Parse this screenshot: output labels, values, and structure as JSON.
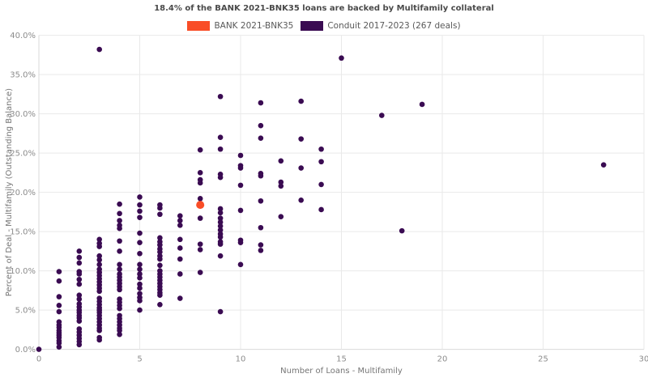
{
  "title": "18.4% of the BANK 2021-BNK35 loans are backed by Multifamily collateral",
  "legend": {
    "items": [
      {
        "label": "BANK 2021-BNK35",
        "color": "#F94D27"
      },
      {
        "label": "Conduit 2017-2023 (267 deals)",
        "color": "#3A0B52"
      }
    ]
  },
  "colors": {
    "bank": "#F94D27",
    "conduit": "#3A0B52",
    "grid": "#e9e9e9",
    "spine": "#d9d9d9",
    "tick_text": "#8c8c8c",
    "axis_title_text": "#757575"
  },
  "chart_data": {
    "type": "scatter",
    "title": "18.4% of the BANK 2021-BNK35 loans are backed by Multifamily collateral",
    "xlabel": "Number of Loans - Multifamily",
    "ylabel": "Percent of Deal - Multifamily (Outstanding Balance)",
    "xlim": [
      0,
      30
    ],
    "ylim": [
      0,
      40
    ],
    "grid": true,
    "legend_position": "top-center",
    "x_ticks": {
      "values": [
        0,
        5,
        10,
        15,
        20,
        25,
        30
      ],
      "labels": [
        "0",
        "5",
        "10",
        "15",
        "20",
        "25",
        "30"
      ]
    },
    "y_ticks": {
      "values": [
        0,
        5,
        10,
        15,
        20,
        25,
        30,
        35,
        40
      ],
      "labels": [
        "0.0%",
        "5.0%",
        "10.0%",
        "15.0%",
        "20.0%",
        "25.0%",
        "30.0%",
        "35.0%",
        "40.0%"
      ]
    },
    "series": [
      {
        "name": "Conduit 2017-2023 (267 deals)",
        "color": "#3A0B52",
        "marker_radius": 3.3,
        "points": [
          [
            0,
            0.0
          ],
          [
            1,
            9.9
          ],
          [
            1,
            8.7
          ],
          [
            1,
            6.7
          ],
          [
            1,
            5.6
          ],
          [
            1,
            4.8
          ],
          [
            1,
            3.5
          ],
          [
            1,
            3.1
          ],
          [
            1,
            2.8
          ],
          [
            1,
            2.4
          ],
          [
            1,
            2.1
          ],
          [
            1,
            1.8
          ],
          [
            1,
            1.5
          ],
          [
            1,
            1.1
          ],
          [
            1,
            0.8
          ],
          [
            1,
            0.3
          ],
          [
            2,
            12.5
          ],
          [
            2,
            11.7
          ],
          [
            2,
            11.0
          ],
          [
            2,
            9.9
          ],
          [
            2,
            9.6
          ],
          [
            2,
            8.9
          ],
          [
            2,
            8.3
          ],
          [
            2,
            6.9
          ],
          [
            2,
            6.4
          ],
          [
            2,
            5.8
          ],
          [
            2,
            5.4
          ],
          [
            2,
            5.0
          ],
          [
            2,
            4.7
          ],
          [
            2,
            4.3
          ],
          [
            2,
            4.0
          ],
          [
            2,
            3.6
          ],
          [
            2,
            2.6
          ],
          [
            2,
            2.2
          ],
          [
            2,
            1.8
          ],
          [
            2,
            1.4
          ],
          [
            2,
            1.0
          ],
          [
            2,
            0.6
          ],
          [
            3,
            38.2
          ],
          [
            3,
            14.0
          ],
          [
            3,
            13.5
          ],
          [
            3,
            13.1
          ],
          [
            3,
            11.9
          ],
          [
            3,
            11.4
          ],
          [
            3,
            10.8
          ],
          [
            3,
            10.2
          ],
          [
            3,
            9.8
          ],
          [
            3,
            9.4
          ],
          [
            3,
            9.0
          ],
          [
            3,
            8.6
          ],
          [
            3,
            8.2
          ],
          [
            3,
            7.8
          ],
          [
            3,
            7.4
          ],
          [
            3,
            6.5
          ],
          [
            3,
            6.1
          ],
          [
            3,
            5.7
          ],
          [
            3,
            5.3
          ],
          [
            3,
            5.0
          ],
          [
            3,
            4.7
          ],
          [
            3,
            4.3
          ],
          [
            3,
            3.9
          ],
          [
            3,
            3.5
          ],
          [
            3,
            3.1
          ],
          [
            3,
            2.7
          ],
          [
            3,
            2.4
          ],
          [
            3,
            1.5
          ],
          [
            3,
            1.2
          ],
          [
            4,
            18.5
          ],
          [
            4,
            17.3
          ],
          [
            4,
            16.4
          ],
          [
            4,
            15.8
          ],
          [
            4,
            15.4
          ],
          [
            4,
            13.8
          ],
          [
            4,
            12.5
          ],
          [
            4,
            10.8
          ],
          [
            4,
            10.2
          ],
          [
            4,
            9.6
          ],
          [
            4,
            9.2
          ],
          [
            4,
            8.8
          ],
          [
            4,
            8.4
          ],
          [
            4,
            8.0
          ],
          [
            4,
            7.6
          ],
          [
            4,
            6.4
          ],
          [
            4,
            6.0
          ],
          [
            4,
            5.6
          ],
          [
            4,
            5.2
          ],
          [
            4,
            4.3
          ],
          [
            4,
            3.9
          ],
          [
            4,
            3.5
          ],
          [
            4,
            3.1
          ],
          [
            4,
            2.7
          ],
          [
            4,
            2.4
          ],
          [
            4,
            1.9
          ],
          [
            5,
            19.4
          ],
          [
            5,
            18.4
          ],
          [
            5,
            17.6
          ],
          [
            5,
            16.8
          ],
          [
            5,
            14.8
          ],
          [
            5,
            13.6
          ],
          [
            5,
            12.2
          ],
          [
            5,
            10.8
          ],
          [
            5,
            10.2
          ],
          [
            5,
            9.6
          ],
          [
            5,
            9.1
          ],
          [
            5,
            8.3
          ],
          [
            5,
            7.8
          ],
          [
            5,
            7.1
          ],
          [
            5,
            6.6
          ],
          [
            5,
            6.2
          ],
          [
            5,
            5.0
          ],
          [
            6,
            18.4
          ],
          [
            6,
            18.0
          ],
          [
            6,
            17.2
          ],
          [
            6,
            14.2
          ],
          [
            6,
            13.7
          ],
          [
            6,
            13.3
          ],
          [
            6,
            12.8
          ],
          [
            6,
            12.4
          ],
          [
            6,
            11.9
          ],
          [
            6,
            11.5
          ],
          [
            6,
            10.7
          ],
          [
            6,
            10.0
          ],
          [
            6,
            9.6
          ],
          [
            6,
            9.2
          ],
          [
            6,
            8.8
          ],
          [
            6,
            8.4
          ],
          [
            6,
            8.0
          ],
          [
            6,
            7.6
          ],
          [
            6,
            7.2
          ],
          [
            6,
            6.9
          ],
          [
            6,
            5.7
          ],
          [
            7,
            17.0
          ],
          [
            7,
            16.4
          ],
          [
            7,
            15.8
          ],
          [
            7,
            14.0
          ],
          [
            7,
            12.9
          ],
          [
            7,
            11.5
          ],
          [
            7,
            9.6
          ],
          [
            7,
            6.5
          ],
          [
            8,
            25.4
          ],
          [
            8,
            22.5
          ],
          [
            8,
            21.6
          ],
          [
            8,
            21.2
          ],
          [
            8,
            19.2
          ],
          [
            8,
            16.7
          ],
          [
            8,
            13.4
          ],
          [
            8,
            12.7
          ],
          [
            8,
            9.8
          ],
          [
            9,
            32.2
          ],
          [
            9,
            27.0
          ],
          [
            9,
            25.5
          ],
          [
            9,
            22.3
          ],
          [
            9,
            21.9
          ],
          [
            9,
            17.9
          ],
          [
            9,
            17.4
          ],
          [
            9,
            16.7
          ],
          [
            9,
            16.2
          ],
          [
            9,
            15.7
          ],
          [
            9,
            15.2
          ],
          [
            9,
            14.7
          ],
          [
            9,
            14.3
          ],
          [
            9,
            13.7
          ],
          [
            9,
            13.4
          ],
          [
            9,
            11.9
          ],
          [
            9,
            4.8
          ],
          [
            10,
            24.7
          ],
          [
            10,
            23.4
          ],
          [
            10,
            23.1
          ],
          [
            10,
            20.9
          ],
          [
            10,
            17.7
          ],
          [
            10,
            13.9
          ],
          [
            10,
            13.6
          ],
          [
            10,
            10.8
          ],
          [
            11,
            31.4
          ],
          [
            11,
            28.5
          ],
          [
            11,
            26.9
          ],
          [
            11,
            22.4
          ],
          [
            11,
            22.1
          ],
          [
            11,
            18.9
          ],
          [
            11,
            15.5
          ],
          [
            11,
            13.3
          ],
          [
            11,
            12.6
          ],
          [
            12,
            24.0
          ],
          [
            12,
            21.3
          ],
          [
            12,
            20.8
          ],
          [
            12,
            16.9
          ],
          [
            13,
            31.6
          ],
          [
            13,
            26.8
          ],
          [
            13,
            23.1
          ],
          [
            13,
            19.0
          ],
          [
            14,
            25.5
          ],
          [
            14,
            23.9
          ],
          [
            14,
            21.0
          ],
          [
            14,
            17.8
          ],
          [
            15,
            37.1
          ],
          [
            17,
            29.8
          ],
          [
            18,
            15.1
          ],
          [
            19,
            31.2
          ],
          [
            28,
            23.5
          ]
        ]
      },
      {
        "name": "BANK 2021-BNK35",
        "color": "#F94D27",
        "marker_radius": 5,
        "points": [
          [
            8,
            18.4
          ]
        ]
      }
    ]
  }
}
